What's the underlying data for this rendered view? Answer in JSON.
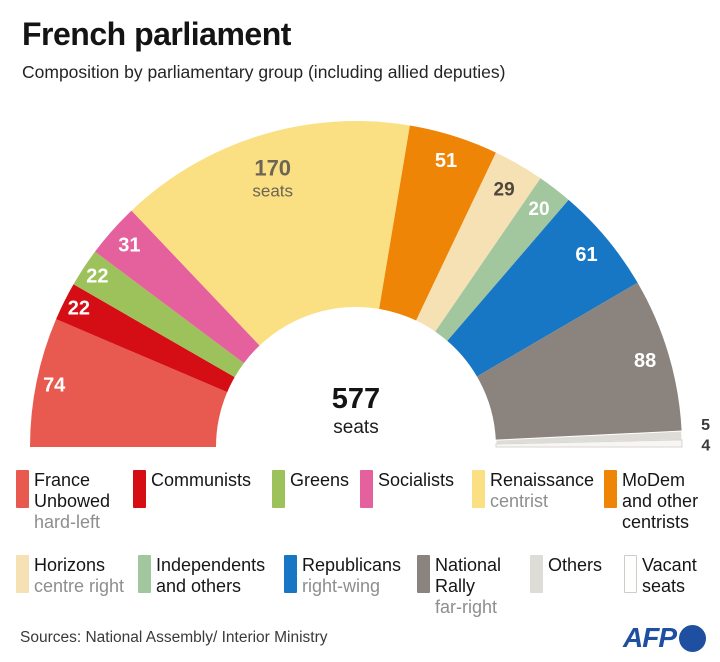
{
  "header": {
    "title": "French parliament",
    "subtitle": "Composition by parliamentary group (including allied deputies)"
  },
  "chart_data": {
    "type": "half-donut",
    "title": "French parliament",
    "total_seats": 577,
    "center_label": {
      "number": "577",
      "unit": "seats"
    },
    "segments": [
      {
        "name": "France Unbowed",
        "value": 74,
        "color": "#E85A4F",
        "label_color": "#FFFFFF"
      },
      {
        "name": "Communists",
        "value": 22,
        "color": "#D40E14",
        "label_color": "#FFFFFF"
      },
      {
        "name": "Greens",
        "value": 22,
        "color": "#9EC25B",
        "label_color": "#FFFFFF"
      },
      {
        "name": "Socialists",
        "value": 31,
        "color": "#E4619D",
        "label_color": "#FFFFFF"
      },
      {
        "name": "Renaissance",
        "value": 170,
        "color": "#FAE083",
        "label_color": "#6C6455",
        "label_suffix": "seats"
      },
      {
        "name": "MoDem and other centrists",
        "value": 51,
        "color": "#EE8506",
        "label_color": "#FFFFFF"
      },
      {
        "name": "Horizons",
        "value": 29,
        "color": "#F6E1B4",
        "label_color": "#4C463C"
      },
      {
        "name": "Independents and others",
        "value": 20,
        "color": "#A2C79F",
        "label_color": "#FFFFFF"
      },
      {
        "name": "Republicans",
        "value": 61,
        "color": "#1877C4",
        "label_color": "#FFFFFF"
      },
      {
        "name": "National Rally",
        "value": 88,
        "color": "#8B837D",
        "label_color": "#FFFFFF"
      },
      {
        "name": "Others",
        "value": 5,
        "color": "#DEDCD7",
        "stroke": "#FFFFFF",
        "label_color": "#3A3A3A",
        "label_outside": true
      },
      {
        "name": "Vacant seats",
        "value": 4,
        "color": "#F7F6F4",
        "stroke": "#D8D6D1",
        "label_color": "#3A3A3A",
        "label_outside": true
      }
    ]
  },
  "legend": {
    "rows": [
      [
        {
          "name": "France Unbowed",
          "descriptor": "hard-left",
          "color": "#E85A4F"
        },
        {
          "name": "Communists",
          "descriptor": "",
          "color": "#D40E14"
        },
        {
          "name": "Greens",
          "descriptor": "",
          "color": "#9EC25B"
        },
        {
          "name": "Socialists",
          "descriptor": "",
          "color": "#E4619D"
        },
        {
          "name": "Renaissance",
          "descriptor": "centrist",
          "color": "#FAE083"
        },
        {
          "name": "MoDem and other centrists",
          "descriptor": "",
          "color": "#EE8506"
        }
      ],
      [
        {
          "name": "Horizons",
          "descriptor": "centre right",
          "color": "#F6E1B4"
        },
        {
          "name": "Independents and others",
          "descriptor": "",
          "color": "#A2C79F"
        },
        {
          "name": "Republicans",
          "descriptor": "right-wing",
          "color": "#1877C4"
        },
        {
          "name": "National Rally",
          "descriptor": "far-right",
          "color": "#8B837D"
        },
        {
          "name": "Others",
          "descriptor": "",
          "color": "#DEDCD7"
        },
        {
          "name": "Vacant seats",
          "descriptor": "",
          "color": "#FFFFFF",
          "border": "#CFCDC8"
        }
      ]
    ]
  },
  "footer": {
    "sources": "Sources: National Assembly/ Interior Ministry",
    "logo_text": "AFP",
    "logo_color": "#1E4FA1"
  }
}
